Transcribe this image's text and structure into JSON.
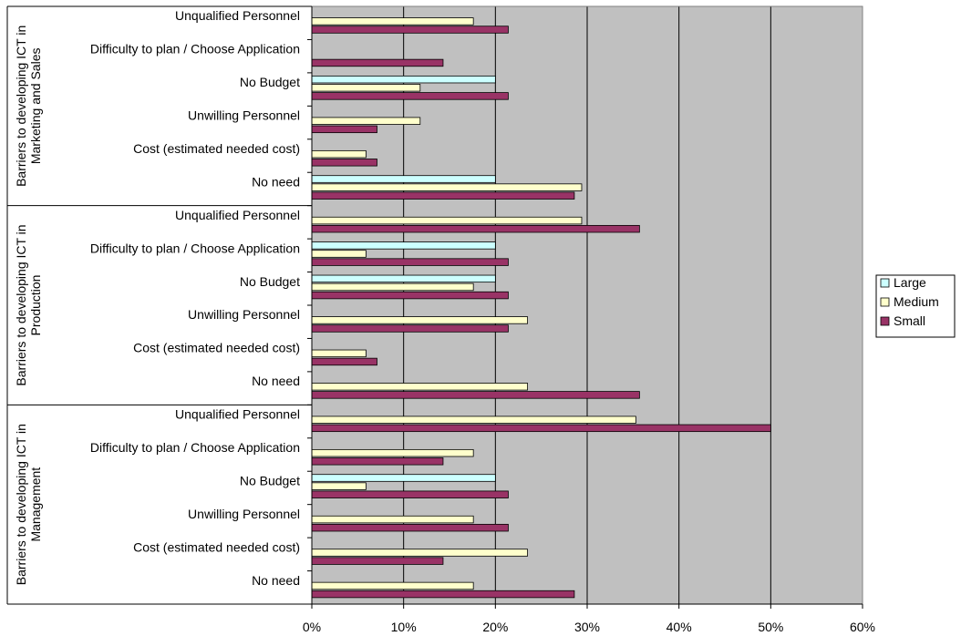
{
  "chart_data": {
    "type": "bar",
    "orientation": "horizontal",
    "grid": true,
    "legend_position": "right",
    "xlim": [
      0,
      60
    ],
    "x_ticks": [
      "0%",
      "10%",
      "20%",
      "30%",
      "40%",
      "50%",
      "60%"
    ],
    "colors": {
      "plot_bg": "#c0c0c0",
      "Large": "#ccffff",
      "Medium": "#ffffcc",
      "Small": "#993366"
    },
    "series": [
      {
        "name": "Large",
        "color": "#ccffff"
      },
      {
        "name": "Medium",
        "color": "#ffffcc"
      },
      {
        "name": "Small",
        "color": "#993366"
      }
    ],
    "groups": [
      {
        "label": [
          "Barriers to developing ICT in",
          "Marketing and Sales"
        ],
        "categories": [
          {
            "label": "Unqualified Personnel",
            "values": {
              "Large": 0,
              "Medium": 17.6,
              "Small": 21.4
            }
          },
          {
            "label": "Difficulty to plan / Choose Application",
            "values": {
              "Large": 0,
              "Medium": 0,
              "Small": 14.3
            }
          },
          {
            "label": "No Budget",
            "values": {
              "Large": 20.0,
              "Medium": 11.8,
              "Small": 21.4
            }
          },
          {
            "label": "Unwilling Personnel",
            "values": {
              "Large": 0,
              "Medium": 11.8,
              "Small": 7.1
            }
          },
          {
            "label": "Cost (estimated needed cost)",
            "values": {
              "Large": 0,
              "Medium": 5.9,
              "Small": 7.1
            }
          },
          {
            "label": "No need",
            "values": {
              "Large": 20.0,
              "Medium": 29.4,
              "Small": 28.6
            }
          }
        ]
      },
      {
        "label": [
          "Barriers to developing ICT in",
          "Production"
        ],
        "categories": [
          {
            "label": "Unqualified Personnel",
            "values": {
              "Large": 0,
              "Medium": 29.4,
              "Small": 35.7
            }
          },
          {
            "label": "Difficulty to plan / Choose Application",
            "values": {
              "Large": 20.0,
              "Medium": 5.9,
              "Small": 21.4
            }
          },
          {
            "label": "No Budget",
            "values": {
              "Large": 20.0,
              "Medium": 17.6,
              "Small": 21.4
            }
          },
          {
            "label": "Unwilling Personnel",
            "values": {
              "Large": 0,
              "Medium": 23.5,
              "Small": 21.4
            }
          },
          {
            "label": "Cost (estimated needed cost)",
            "values": {
              "Large": 0,
              "Medium": 5.9,
              "Small": 7.1
            }
          },
          {
            "label": "No need",
            "values": {
              "Large": 0,
              "Medium": 23.5,
              "Small": 35.7
            }
          }
        ]
      },
      {
        "label": [
          "Barriers to developing ICT in",
          "Management"
        ],
        "categories": [
          {
            "label": "Unqualified Personnel",
            "values": {
              "Large": 0,
              "Medium": 35.3,
              "Small": 50.0
            }
          },
          {
            "label": "Difficulty to plan / Choose Application",
            "values": {
              "Large": 0,
              "Medium": 17.6,
              "Small": 14.3
            }
          },
          {
            "label": "No Budget",
            "values": {
              "Large": 20.0,
              "Medium": 5.9,
              "Small": 21.4
            }
          },
          {
            "label": "Unwilling Personnel",
            "values": {
              "Large": 0,
              "Medium": 17.6,
              "Small": 21.4
            }
          },
          {
            "label": "Cost (estimated needed cost)",
            "values": {
              "Large": 0,
              "Medium": 23.5,
              "Small": 14.3
            }
          },
          {
            "label": "No need",
            "values": {
              "Large": 0,
              "Medium": 17.6,
              "Small": 28.6
            }
          }
        ]
      }
    ]
  }
}
